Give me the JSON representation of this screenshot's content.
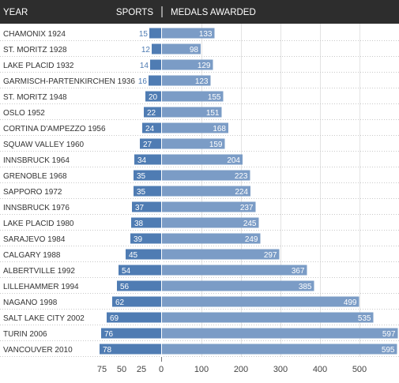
{
  "header": {
    "year_label": "YEAR",
    "sports_label": "SPORTS",
    "medals_label": "MEDALS AWARDED"
  },
  "chart_data": {
    "type": "bar",
    "categories": [
      "CHAMONIX 1924",
      "ST. MORITZ 1928",
      "LAKE PLACID 1932",
      "GARMISCH-PARTENKIRCHEN 1936",
      "ST. MORITZ 1948",
      "OSLO 1952",
      "CORTINA D'AMPEZZO 1956",
      "SQUAW VALLEY 1960",
      "INNSBRUCK 1964",
      "GRENOBLE 1968",
      "SAPPORO 1972",
      "INNSBRUCK 1976",
      "LAKE PLACID 1980",
      "SARAJEVO 1984",
      "CALGARY 1988",
      "ALBERTVILLE 1992",
      "LILLEHAMMER 1994",
      "NAGANO 1998",
      "SALT LAKE CITY 2002",
      "TURIN 2006",
      "VANCOUVER 2010"
    ],
    "series": [
      {
        "name": "SPORTS",
        "values": [
          15,
          12,
          14,
          16,
          20,
          22,
          24,
          27,
          34,
          35,
          35,
          37,
          38,
          39,
          45,
          54,
          56,
          62,
          69,
          76,
          78
        ]
      },
      {
        "name": "MEDALS AWARDED",
        "values": [
          133,
          98,
          129,
          123,
          155,
          151,
          168,
          159,
          204,
          223,
          224,
          237,
          245,
          249,
          297,
          367,
          385,
          499,
          535,
          597,
          595
        ]
      }
    ],
    "sports_axis": {
      "ticks": [
        "75",
        "50",
        "25",
        "0"
      ],
      "range": [
        0,
        75
      ]
    },
    "medals_axis": {
      "ticks": [
        "100",
        "200",
        "300",
        "400",
        "500"
      ],
      "range": [
        0,
        600
      ]
    },
    "colors": {
      "sports": "#4f7cb3",
      "medals": "#7b9cc6",
      "header": "#2d2d2d"
    }
  }
}
